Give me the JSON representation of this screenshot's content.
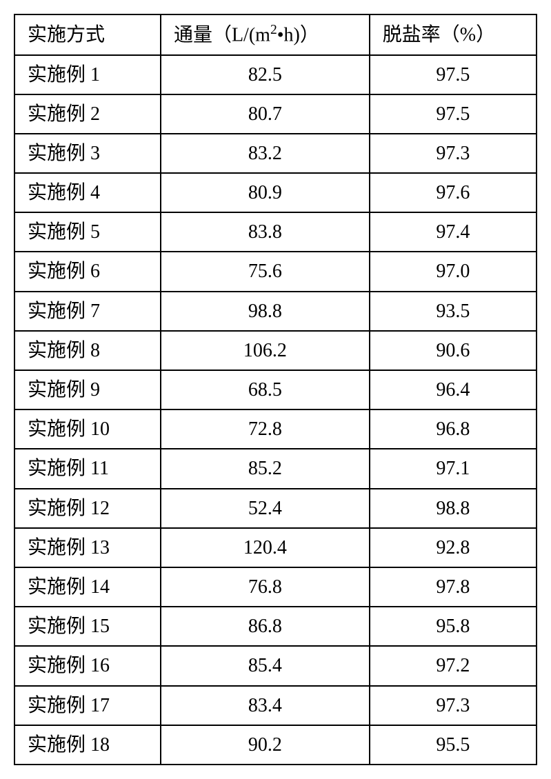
{
  "table": {
    "columns": {
      "method": "实施方式",
      "flux_prefix": "通量（L/(m",
      "flux_super": "2",
      "flux_suffix": "•h)）",
      "rate": "脱盐率（%）"
    },
    "rows": [
      {
        "method": "实施例 1",
        "flux": "82.5",
        "rate": "97.5"
      },
      {
        "method": "实施例 2",
        "flux": "80.7",
        "rate": "97.5"
      },
      {
        "method": "实施例 3",
        "flux": "83.2",
        "rate": "97.3"
      },
      {
        "method": "实施例 4",
        "flux": "80.9",
        "rate": "97.6"
      },
      {
        "method": "实施例 5",
        "flux": "83.8",
        "rate": "97.4"
      },
      {
        "method": "实施例 6",
        "flux": "75.6",
        "rate": "97.0"
      },
      {
        "method": "实施例 7",
        "flux": "98.8",
        "rate": "93.5"
      },
      {
        "method": "实施例 8",
        "flux": "106.2",
        "rate": "90.6"
      },
      {
        "method": "实施例 9",
        "flux": "68.5",
        "rate": "96.4"
      },
      {
        "method": "实施例 10",
        "flux": "72.8",
        "rate": "96.8"
      },
      {
        "method": "实施例 11",
        "flux": "85.2",
        "rate": "97.1"
      },
      {
        "method": "实施例 12",
        "flux": "52.4",
        "rate": "98.8"
      },
      {
        "method": "实施例 13",
        "flux": "120.4",
        "rate": "92.8"
      },
      {
        "method": "实施例 14",
        "flux": "76.8",
        "rate": "97.8"
      },
      {
        "method": "实施例 15",
        "flux": "86.8",
        "rate": "95.8"
      },
      {
        "method": "实施例 16",
        "flux": "85.4",
        "rate": "97.2"
      },
      {
        "method": "实施例 17",
        "flux": "83.4",
        "rate": "97.3"
      },
      {
        "method": "实施例 18",
        "flux": "90.2",
        "rate": "95.5"
      }
    ],
    "styling": {
      "border_color": "#000000",
      "border_width": 2,
      "background_color": "#ffffff",
      "text_color": "#000000",
      "font_size": 28,
      "font_family": "SimSun",
      "col_widths_pct": [
        28,
        40,
        32
      ],
      "header_align": "left",
      "method_align": "left",
      "flux_align": "center",
      "rate_align": "center"
    }
  }
}
